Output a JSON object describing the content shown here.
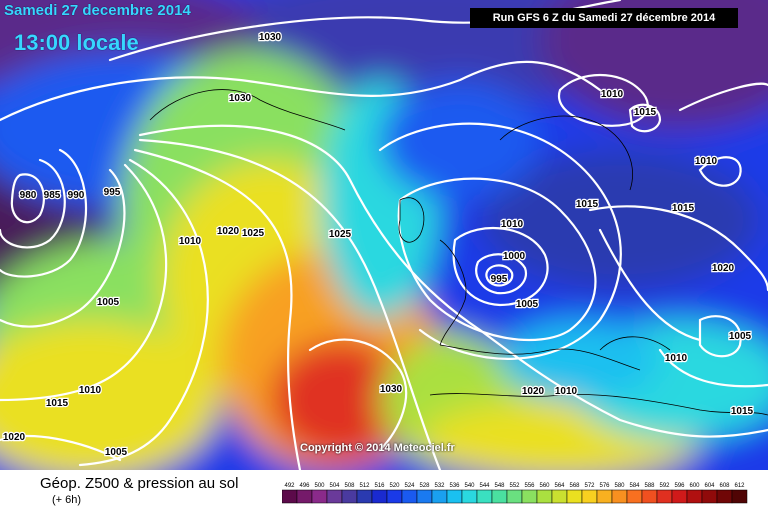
{
  "header": {
    "date": "Samedi 27 decembre 2014",
    "time": "13:00 locale",
    "run": "Run GFS 6 Z du Samedi 27 décembre 2014"
  },
  "copyright": "Copyright © 2014 Meteociel.fr",
  "footer": {
    "title": "Géop. Z500 & pression au sol",
    "subtitle": "(+ 6h)"
  },
  "isobar_labels": [
    "1030",
    "1030",
    "1010",
    "1015",
    "1010",
    "980",
    "985",
    "990",
    "995",
    "1010",
    "1020",
    "1025",
    "1025",
    "1010",
    "1000",
    "995",
    "1005",
    "1015",
    "1015",
    "1010",
    "1020",
    "1005",
    "1005",
    "1010",
    "1015",
    "1010",
    "1020",
    "1005",
    "1030",
    "1020",
    "1015"
  ],
  "legend": {
    "values": [
      "492",
      "496",
      "500",
      "504",
      "508",
      "512",
      "516",
      "520",
      "524",
      "528",
      "532",
      "536",
      "540",
      "544",
      "548",
      "552",
      "556",
      "560",
      "564",
      "568",
      "572",
      "576",
      "580",
      "584",
      "588",
      "592",
      "596",
      "600",
      "604",
      "608",
      "612"
    ],
    "colors": [
      "#5c0a4a",
      "#751a6a",
      "#8a2a8a",
      "#6a3a9a",
      "#4a3aa0",
      "#2a3ab0",
      "#1a2ad0",
      "#1a3ae8",
      "#1a5af0",
      "#1a7af0",
      "#1aa0f0",
      "#1ac0f0",
      "#2ad8e0",
      "#3ae0c0",
      "#4ae0a0",
      "#6ae080",
      "#8ae060",
      "#aae040",
      "#cae030",
      "#eae020",
      "#f8d020",
      "#f8b020",
      "#f89020",
      "#f87020",
      "#f05020",
      "#e03020",
      "#d01a1a",
      "#b01010",
      "#900a0a",
      "#700606",
      "#500404"
    ]
  }
}
